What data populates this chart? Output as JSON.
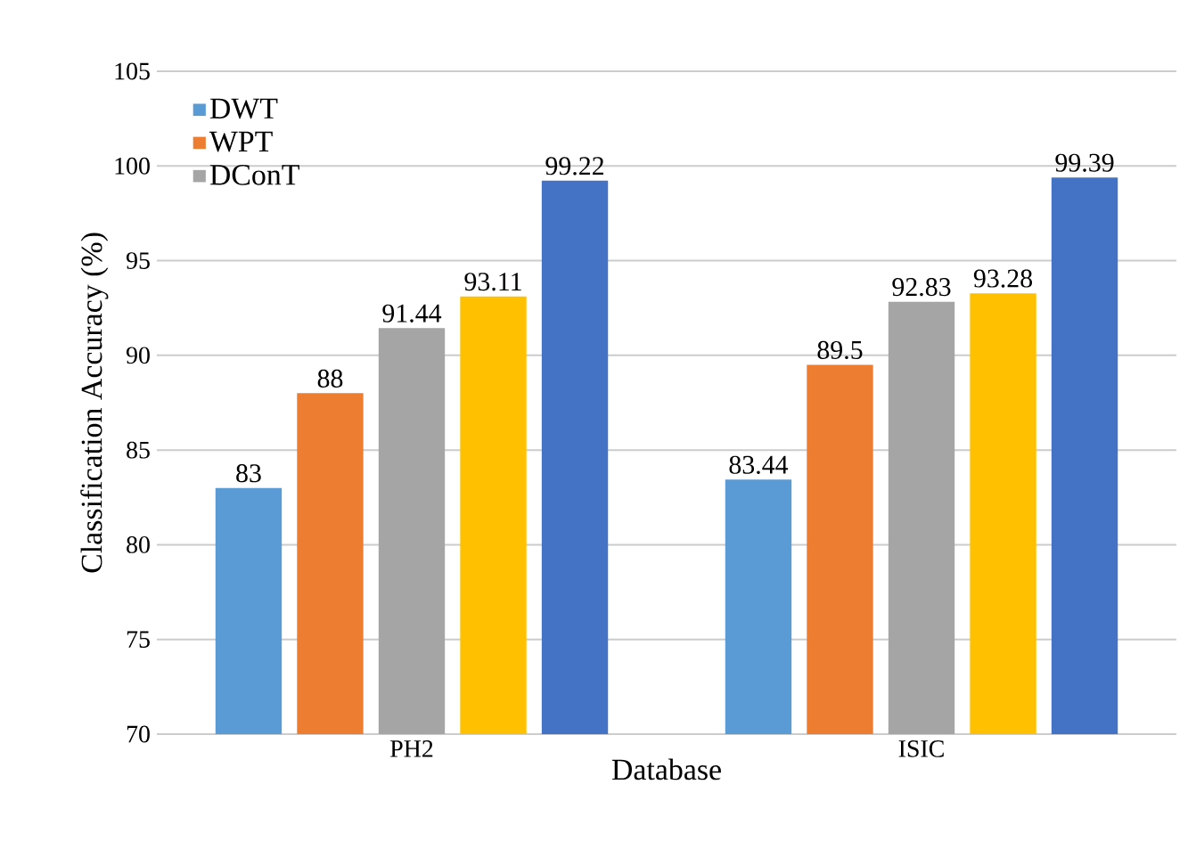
{
  "chart_data": {
    "type": "bar",
    "xlabel": "Database",
    "ylabel": "Classification Accuracy (%)",
    "categories": [
      "PH2",
      "ISIC"
    ],
    "series": [
      {
        "name": "DWT",
        "color": "#5b9bd5",
        "values": [
          83,
          83.44
        ]
      },
      {
        "name": "WPT",
        "color": "#ed7d31",
        "values": [
          88,
          89.5
        ]
      },
      {
        "name": "DConT",
        "color": "#a5a5a5",
        "values": [
          91.44,
          92.83
        ]
      },
      {
        "color": "#ffc000",
        "values": [
          93.11,
          93.28
        ]
      },
      {
        "color": "#4472c4",
        "values": [
          99.22,
          99.39
        ]
      }
    ],
    "ylim": [
      70,
      105
    ],
    "yticks": [
      70,
      75,
      80,
      85,
      90,
      95,
      100,
      105
    ],
    "grid": "y",
    "legend": "top left",
    "data_labels": true
  }
}
